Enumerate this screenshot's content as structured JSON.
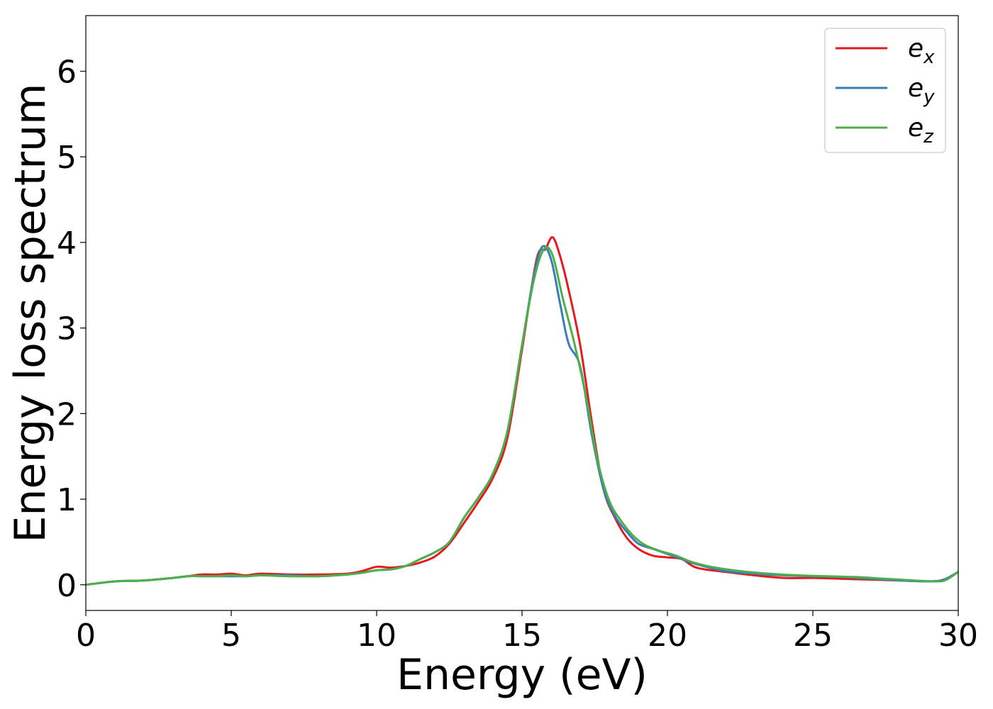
{
  "chart_data": {
    "type": "line",
    "title": "",
    "xlabel": "Energy (eV)",
    "ylabel": "Energy loss spectrum",
    "xlim": [
      0,
      30
    ],
    "ylim": [
      -0.3,
      6.65
    ],
    "xticks": [
      0,
      5,
      10,
      15,
      20,
      25,
      30
    ],
    "yticks": [
      0,
      1,
      2,
      3,
      4,
      5,
      6
    ],
    "grid": false,
    "legend_position": "top-right",
    "series": [
      {
        "name": "e_x",
        "label_base": "e",
        "label_sub": "x",
        "color": "#e41a1c",
        "x": [
          0,
          1,
          2,
          3,
          3.5,
          4,
          4.5,
          5,
          5.5,
          6,
          7,
          8,
          9,
          9.5,
          10,
          10.5,
          11,
          11.5,
          12,
          12.5,
          13,
          13.5,
          14,
          14.5,
          15,
          15.5,
          15.8,
          16.05,
          16.3,
          16.6,
          17,
          17.4,
          17.8,
          18.2,
          18.6,
          19,
          19.5,
          20,
          20.5,
          21,
          22,
          23,
          24,
          25,
          26,
          27,
          28,
          29,
          29.5,
          30
        ],
        "y": [
          0.0,
          0.04,
          0.05,
          0.08,
          0.1,
          0.12,
          0.12,
          0.13,
          0.11,
          0.13,
          0.12,
          0.12,
          0.13,
          0.16,
          0.21,
          0.2,
          0.22,
          0.26,
          0.33,
          0.48,
          0.72,
          0.97,
          1.25,
          1.72,
          2.75,
          3.8,
          3.92,
          4.06,
          3.85,
          3.45,
          2.8,
          1.9,
          1.12,
          0.78,
          0.55,
          0.42,
          0.34,
          0.32,
          0.3,
          0.2,
          0.15,
          0.11,
          0.08,
          0.08,
          0.07,
          0.06,
          0.05,
          0.04,
          0.06,
          0.15
        ]
      },
      {
        "name": "e_y",
        "label_base": "e",
        "label_sub": "y",
        "color": "#377eb8",
        "x": [
          0,
          1,
          2,
          3,
          3.5,
          4,
          4.5,
          5,
          5.5,
          6,
          7,
          8,
          9,
          9.5,
          10,
          10.5,
          11,
          11.5,
          12,
          12.5,
          13,
          13.5,
          14,
          14.5,
          15,
          15.4,
          15.7,
          16,
          16.3,
          16.6,
          17,
          17.4,
          17.8,
          18.2,
          18.6,
          19,
          19.5,
          20,
          20.5,
          21,
          22,
          23,
          24,
          25,
          26,
          27,
          28,
          29,
          29.5,
          30
        ],
        "y": [
          0.0,
          0.04,
          0.05,
          0.08,
          0.1,
          0.1,
          0.1,
          0.1,
          0.1,
          0.11,
          0.11,
          0.1,
          0.12,
          0.14,
          0.17,
          0.18,
          0.22,
          0.3,
          0.38,
          0.5,
          0.78,
          1.02,
          1.3,
          1.8,
          2.8,
          3.6,
          3.95,
          3.8,
          3.3,
          2.82,
          2.55,
          1.75,
          1.12,
          0.8,
          0.62,
          0.48,
          0.42,
          0.36,
          0.3,
          0.24,
          0.16,
          0.13,
          0.11,
          0.1,
          0.09,
          0.07,
          0.05,
          0.04,
          0.06,
          0.15
        ]
      },
      {
        "name": "e_z",
        "label_base": "e",
        "label_sub": "z",
        "color": "#4daf4a",
        "x": [
          0,
          1,
          2,
          3,
          3.5,
          4,
          4.5,
          5,
          5.5,
          6,
          7,
          8,
          9,
          9.5,
          10,
          10.5,
          11,
          11.5,
          12,
          12.5,
          13,
          13.5,
          14,
          14.5,
          15,
          15.4,
          15.75,
          16.05,
          16.4,
          16.8,
          17.2,
          17.6,
          18,
          18.4,
          18.8,
          19.2,
          19.7,
          20.3,
          20.8,
          21.5,
          22.5,
          23.5,
          24.5,
          25.5,
          26.5,
          27.5,
          28.5,
          29.3,
          29.6,
          30
        ],
        "y": [
          0.0,
          0.04,
          0.05,
          0.08,
          0.1,
          0.1,
          0.1,
          0.11,
          0.1,
          0.11,
          0.1,
          0.1,
          0.12,
          0.14,
          0.17,
          0.18,
          0.22,
          0.3,
          0.38,
          0.5,
          0.78,
          1.02,
          1.3,
          1.8,
          2.8,
          3.55,
          3.92,
          3.85,
          3.35,
          2.82,
          2.2,
          1.45,
          0.98,
          0.75,
          0.58,
          0.47,
          0.4,
          0.34,
          0.27,
          0.21,
          0.16,
          0.13,
          0.11,
          0.1,
          0.09,
          0.07,
          0.05,
          0.04,
          0.06,
          0.15
        ]
      }
    ]
  }
}
